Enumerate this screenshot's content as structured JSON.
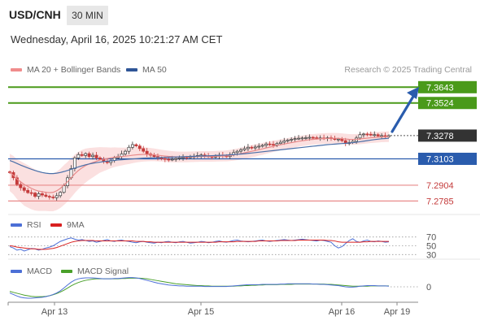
{
  "header": {
    "pair": "USD/CNH",
    "timeframe": "30 MIN",
    "datetime": "Wednesday, April 16, 2025 10:21:27 AM CET"
  },
  "legend": {
    "ma20_label": "MA 20 + Bollinger Bands",
    "ma50_label": "MA 50",
    "credit": "Research © 2025 Trading Central",
    "rsi_label": "RSI",
    "rsi_ma_label": "9MA",
    "macd_label": "MACD",
    "macd_signal_label": "MACD Signal"
  },
  "colors": {
    "resistance": "#4a9a1a",
    "support": "#e88a8a",
    "pivot": "#2a5cad",
    "current": "#333333",
    "candle_up": "#3a3a3a",
    "candle_down": "#c43b3b",
    "ma20": "#e88a8a",
    "ma50": "#4a6fa8",
    "bollinger": "#fbe0e0",
    "rsi": "#4c6fd6",
    "rsi_ma": "#d92020",
    "macd": "#4c6fd6",
    "macd_signal": "#4aa02a",
    "arrow": "#2a5cad"
  },
  "levels": [
    {
      "value": "7.3643",
      "kind": "resistance"
    },
    {
      "value": "7.3524",
      "kind": "resistance"
    },
    {
      "value": "7.3278",
      "kind": "current"
    },
    {
      "value": "7.3103",
      "kind": "pivot"
    },
    {
      "value": "7.2904",
      "kind": "support"
    },
    {
      "value": "7.2785",
      "kind": "support"
    }
  ],
  "rsi_ticks": [
    "70",
    "50",
    "30"
  ],
  "macd_ticks": [
    "0"
  ],
  "x_labels": [
    "Apr 13",
    "Apr 15",
    "Apr 16",
    "Apr 19"
  ],
  "chart_data": {
    "type": "candlestick",
    "price_range": [
      7.272,
      7.37
    ],
    "rsi_range": [
      25,
      75
    ],
    "closes": [
      7.3,
      7.296,
      7.291,
      7.2885,
      7.2865,
      7.2848,
      7.2845,
      7.282,
      7.284,
      7.283,
      7.282,
      7.2815,
      7.281,
      7.2825,
      7.285,
      7.29,
      7.296,
      7.303,
      7.311,
      7.3135,
      7.3128,
      7.3142,
      7.312,
      7.313,
      7.311,
      7.31,
      7.3085,
      7.3075,
      7.309,
      7.311,
      7.312,
      7.314,
      7.316,
      7.319,
      7.321,
      7.32,
      7.318,
      7.316,
      7.314,
      7.313,
      7.312,
      7.311,
      7.3105,
      7.31,
      7.3095,
      7.31,
      7.3105,
      7.311,
      7.3115,
      7.3112,
      7.3118,
      7.3122,
      7.3128,
      7.3132,
      7.3125,
      7.312,
      7.3118,
      7.3122,
      7.313,
      7.3125,
      7.312,
      7.3135,
      7.315,
      7.316,
      7.317,
      7.318,
      7.319,
      7.3185,
      7.3192,
      7.3198,
      7.3205,
      7.3215,
      7.3212,
      7.3208,
      7.3218,
      7.3228,
      7.3238,
      7.3245,
      7.325,
      7.3255,
      7.3258,
      7.326,
      7.3262,
      7.3265,
      7.3262,
      7.3258,
      7.326,
      7.3258,
      7.3262,
      7.3255,
      7.325,
      7.3252,
      7.324,
      7.322,
      7.3225,
      7.3235,
      7.326,
      7.3285,
      7.329,
      7.3288,
      7.3282,
      7.3285,
      7.3275,
      7.3278,
      7.327,
      7.3278
    ],
    "ma20": [
      7.3,
      7.298,
      7.295,
      7.293,
      7.291,
      7.2895,
      7.288,
      7.2868,
      7.286,
      7.2855,
      7.285,
      7.2848,
      7.285,
      7.2862,
      7.288,
      7.2905,
      7.293,
      7.296,
      7.299,
      7.3015,
      7.3035,
      7.3052,
      7.3065,
      7.3075,
      7.3085,
      7.3095,
      7.31,
      7.3105,
      7.311,
      7.3115,
      7.3118,
      7.312,
      7.3123,
      7.3126,
      7.313,
      7.3133,
      7.3135,
      7.3136,
      7.3136,
      7.3135,
      7.3133,
      7.313,
      7.3127,
      7.3124,
      7.3121,
      7.3119,
      7.3118,
      7.3117,
      7.3117,
      7.3117,
      7.3118,
      7.3119,
      7.312,
      7.3121,
      7.3121,
      7.3121,
      7.3121,
      7.3122,
      7.3123,
      7.3124,
      7.3125,
      7.3128,
      7.3132,
      7.3137,
      7.3142,
      7.3148,
      7.3154,
      7.316,
      7.3166,
      7.3172,
      7.3178,
      7.3185,
      7.3191,
      7.3197,
      7.3203,
      7.3209,
      7.3215,
      7.322,
      7.3225,
      7.323,
      7.3235,
      7.3239,
      7.3243,
      7.3247,
      7.325,
      7.3252,
      7.3254,
      7.3256,
      7.3257,
      7.3258,
      7.3258,
      7.3257,
      7.3255,
      7.3252,
      7.325,
      7.3249,
      7.325,
      7.3253,
      7.3256,
      7.3259,
      7.3262,
      7.3264,
      7.3266,
      7.3268,
      7.3269,
      7.327
    ],
    "ma50": [
      7.309,
      7.308,
      7.3068,
      7.3056,
      7.3045,
      7.3034,
      7.3024,
      7.3015,
      7.3007,
      7.3,
      7.2995,
      7.2992,
      7.2992,
      7.2995,
      7.3,
      7.3007,
      7.3015,
      7.3024,
      7.3033,
      7.3042,
      7.305,
      7.3058,
      7.3064,
      7.307,
      7.3074,
      7.3078,
      7.3082,
      7.3085,
      7.3088,
      7.3091,
      7.3094,
      7.3096,
      7.3098,
      7.31,
      7.3102,
      7.3104,
      7.3106,
      7.3108,
      7.3109,
      7.311,
      7.3111,
      7.3112,
      7.3113,
      7.3114,
      7.3115,
      7.3116,
      7.3117,
      7.3118,
      7.3119,
      7.312,
      7.3121,
      7.3122,
      7.3123,
      7.3124,
      7.3125,
      7.3126,
      7.3127,
      7.3128,
      7.3129,
      7.313,
      7.3131,
      7.3133,
      7.3135,
      7.3137,
      7.3139,
      7.3141,
      7.3144,
      7.3147,
      7.315,
      7.3153,
      7.3156,
      7.3159,
      7.3162,
      7.3165,
      7.3168,
      7.3171,
      7.3174,
      7.3177,
      7.318,
      7.3183,
      7.3186,
      7.3189,
      7.3192,
      7.3195,
      7.3198,
      7.3201,
      7.3204,
      7.3207,
      7.321,
      7.3212,
      7.3214,
      7.3216,
      7.3218,
      7.322,
      7.3222,
      7.3225,
      7.3228,
      7.3232,
      7.3236,
      7.324,
      7.3244,
      7.3248,
      7.3251,
      7.3254,
      7.3256,
      7.3258
    ],
    "bb_width": [
      0.014,
      0.0145,
      0.015,
      0.0155,
      0.016,
      0.016,
      0.0158,
      0.0155,
      0.015,
      0.0145,
      0.014,
      0.014,
      0.0142,
      0.0145,
      0.0148,
      0.015,
      0.015,
      0.0148,
      0.0145,
      0.014,
      0.0135,
      0.0128,
      0.012,
      0.0112,
      0.0104,
      0.0096,
      0.009,
      0.0084,
      0.0078,
      0.0074,
      0.007,
      0.0067,
      0.0064,
      0.0062,
      0.006,
      0.0058,
      0.0056,
      0.0054,
      0.0052,
      0.005,
      0.0048,
      0.0046,
      0.0045,
      0.0044,
      0.0043,
      0.0042,
      0.0041,
      0.004,
      0.004,
      0.004,
      0.004,
      0.004,
      0.004,
      0.004,
      0.004,
      0.004,
      0.004,
      0.004,
      0.004,
      0.004,
      0.0041,
      0.0042,
      0.0043,
      0.0044,
      0.0045,
      0.0046,
      0.0046,
      0.0046,
      0.0046,
      0.0045,
      0.0045,
      0.0044,
      0.0043,
      0.0042,
      0.0041,
      0.004,
      0.004,
      0.004,
      0.004,
      0.004,
      0.004,
      0.004,
      0.004,
      0.004,
      0.004,
      0.004,
      0.004,
      0.004,
      0.004,
      0.004,
      0.004,
      0.004,
      0.004,
      0.004,
      0.004,
      0.004,
      0.004,
      0.004,
      0.004,
      0.004,
      0.004,
      0.004,
      0.004,
      0.004,
      0.004,
      0.004
    ],
    "rsi": [
      48,
      45,
      40,
      42,
      38,
      41,
      44,
      43,
      40,
      42,
      45,
      47,
      50,
      55,
      60,
      63,
      66,
      68,
      65,
      63,
      64,
      62,
      60,
      61,
      58,
      60,
      62,
      64,
      61,
      60,
      62,
      63,
      61,
      60,
      58,
      57,
      59,
      60,
      58,
      57,
      56,
      58,
      57,
      59,
      60,
      58,
      57,
      59,
      60,
      58,
      56,
      57,
      58,
      60,
      59,
      57,
      58,
      60,
      61,
      59,
      58,
      60,
      62,
      63,
      61,
      60,
      59,
      60,
      61,
      62,
      63,
      61,
      60,
      61,
      62,
      63,
      64,
      63,
      62,
      63,
      64,
      65,
      64,
      63,
      62,
      61,
      63,
      62,
      60,
      58,
      50,
      45,
      48,
      55,
      62,
      66,
      60,
      58,
      61,
      63,
      60,
      59,
      61,
      60,
      58,
      59
    ],
    "rsi_ma": [
      50,
      49,
      47,
      46,
      45,
      44,
      43,
      43,
      42,
      42,
      42,
      43,
      44,
      46,
      49,
      52,
      55,
      58,
      60,
      61,
      62,
      62,
      62,
      62,
      61,
      61,
      61,
      61,
      61,
      61,
      61,
      61,
      61,
      61,
      61,
      60,
      60,
      60,
      59,
      59,
      58,
      58,
      58,
      58,
      58,
      58,
      58,
      58,
      58,
      58,
      58,
      58,
      58,
      58,
      58,
      58,
      58,
      58,
      59,
      59,
      59,
      59,
      59,
      60,
      60,
      60,
      60,
      60,
      60,
      61,
      61,
      61,
      61,
      61,
      61,
      62,
      62,
      62,
      62,
      62,
      63,
      63,
      63,
      63,
      63,
      63,
      63,
      63,
      62,
      62,
      61,
      59,
      58,
      58,
      58,
      58,
      58,
      58,
      59,
      59,
      60,
      60,
      60,
      60,
      60,
      60
    ],
    "macd": [
      -0.002,
      -0.0025,
      -0.003,
      -0.0034,
      -0.0036,
      -0.0037,
      -0.0037,
      -0.0036,
      -0.0035,
      -0.0034,
      -0.0032,
      -0.0029,
      -0.0025,
      -0.002,
      -0.0013,
      -0.0004,
      0.0006,
      0.0015,
      0.0022,
      0.0026,
      0.0028,
      0.0029,
      0.0029,
      0.0029,
      0.0028,
      0.0027,
      0.0026,
      0.0026,
      0.0026,
      0.0027,
      0.0027,
      0.0028,
      0.0029,
      0.003,
      0.003,
      0.0029,
      0.0027,
      0.0024,
      0.0021,
      0.0018,
      0.0015,
      0.0012,
      0.001,
      0.0008,
      0.0006,
      0.0005,
      0.0004,
      0.0003,
      0.0003,
      0.0002,
      0.0002,
      0.0002,
      0.0002,
      0.0002,
      0.0001,
      0.0001,
      0.0001,
      0.0001,
      0.0001,
      0.0001,
      0.0001,
      0.0002,
      0.0003,
      0.0004,
      0.0005,
      0.0006,
      0.0007,
      0.0007,
      0.0007,
      0.0007,
      0.0008,
      0.0008,
      0.0008,
      0.0008,
      0.0008,
      0.0009,
      0.0009,
      0.001,
      0.001,
      0.001,
      0.001,
      0.001,
      0.001,
      0.001,
      0.0009,
      0.0009,
      0.0008,
      0.0008,
      0.0007,
      0.0006,
      0.0005,
      0.0004,
      0.0002,
      0.0,
      -0.0001,
      -0.0001,
      0.0,
      0.0002,
      0.0003,
      0.0004,
      0.0004,
      0.0004,
      0.0003,
      0.0003,
      0.0003,
      0.0002
    ],
    "macd_signal": [
      -0.0015,
      -0.0018,
      -0.0021,
      -0.0024,
      -0.0027,
      -0.0029,
      -0.0031,
      -0.0032,
      -0.0032,
      -0.0032,
      -0.0031,
      -0.0029,
      -0.0026,
      -0.0022,
      -0.0017,
      -0.0011,
      -0.0004,
      0.0003,
      0.0009,
      0.0014,
      0.0018,
      0.0021,
      0.0023,
      0.0025,
      0.0026,
      0.0026,
      0.0026,
      0.0026,
      0.0026,
      0.0026,
      0.0026,
      0.0027,
      0.0027,
      0.0028,
      0.0028,
      0.0028,
      0.0028,
      0.0027,
      0.0026,
      0.0024,
      0.0022,
      0.002,
      0.0018,
      0.0016,
      0.0014,
      0.0012,
      0.001,
      0.0009,
      0.0008,
      0.0007,
      0.0006,
      0.0005,
      0.0004,
      0.0004,
      0.0003,
      0.0003,
      0.0002,
      0.0002,
      0.0002,
      0.0002,
      0.0002,
      0.0002,
      0.0002,
      0.0003,
      0.0003,
      0.0004,
      0.0004,
      0.0005,
      0.0005,
      0.0006,
      0.0006,
      0.0007,
      0.0007,
      0.0007,
      0.0007,
      0.0008,
      0.0008,
      0.0008,
      0.0008,
      0.0009,
      0.0009,
      0.0009,
      0.0009,
      0.0009,
      0.0009,
      0.0009,
      0.0009,
      0.0009,
      0.0008,
      0.0008,
      0.0007,
      0.0006,
      0.0005,
      0.0004,
      0.0003,
      0.0002,
      0.0002,
      0.0002,
      0.0002,
      0.0002,
      0.0003,
      0.0003,
      0.0003,
      0.0003,
      0.0003,
      0.0003
    ],
    "macd_range": [
      -0.0045,
      0.0045
    ]
  }
}
